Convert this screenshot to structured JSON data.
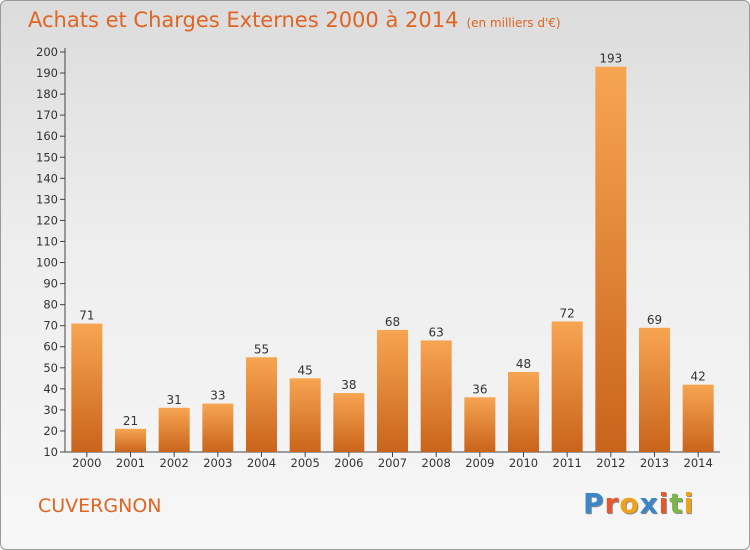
{
  "chart_data": {
    "type": "bar",
    "title": "Achats et Charges Externes 2000 à 2014",
    "unit_label": "(en milliers d'€)",
    "categories": [
      "2000",
      "2001",
      "2002",
      "2003",
      "2004",
      "2005",
      "2006",
      "2007",
      "2008",
      "2009",
      "2010",
      "2011",
      "2012",
      "2013",
      "2014"
    ],
    "values": [
      71,
      21,
      31,
      33,
      55,
      45,
      38,
      68,
      63,
      36,
      48,
      72,
      193,
      69,
      42
    ],
    "ylim": [
      10,
      200
    ],
    "ytick_step": 10,
    "grid": false,
    "bar_color_light": "#f7a552",
    "bar_color_dark": "#c9641b"
  },
  "place_name": "CUVERGNON",
  "logo": {
    "letters": [
      "P",
      "r",
      "o",
      "x",
      "i",
      "t",
      "i"
    ],
    "colors": [
      "#3a86c8",
      "#e8572b",
      "#f0a21b",
      "#3a86c8",
      "#e8572b",
      "#7ab648",
      "#f0a21b"
    ]
  },
  "colors": {
    "title": "#e06422",
    "axis": "#444444"
  }
}
